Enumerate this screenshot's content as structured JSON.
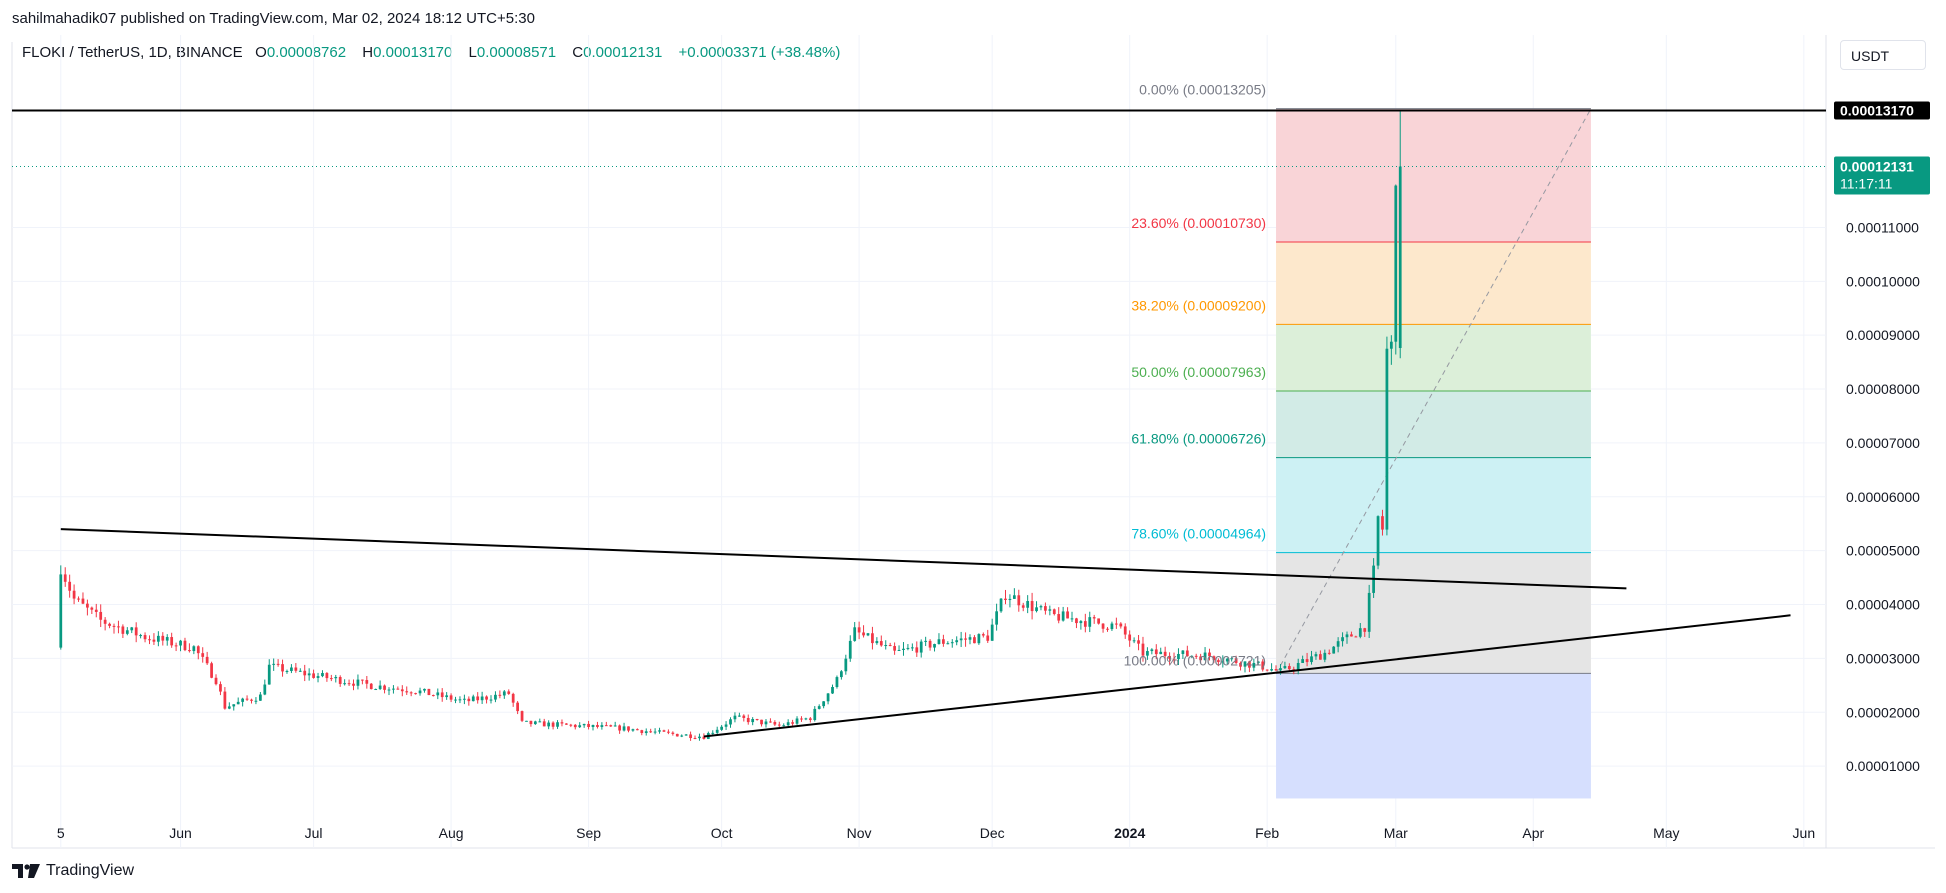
{
  "header": {
    "published": "sahilmahadik07 published on TradingView.com, Mar 02, 2024 18:12 UTC+5:30"
  },
  "legend": {
    "symbol": "FLOKI / TetherUS, 1D, BINANCE",
    "o_label": "O",
    "o_value": "0.00008762",
    "h_label": "H",
    "h_value": "0.00013170",
    "l_label": "L",
    "l_value": "0.00008571",
    "c_label": "C",
    "c_value": "0.00012131",
    "change": "+0.00003371 (+38.48%)"
  },
  "currency_button": "USDT",
  "brand": "TradingView",
  "colors": {
    "up": "#089981",
    "down": "#f23645",
    "text": "#131722",
    "grid": "#f0f3fa"
  },
  "chart_data": {
    "type": "candlestick",
    "yticks": [
      "0.00001000",
      "0.00002000",
      "0.00003000",
      "0.00004000",
      "0.00005000",
      "0.00006000",
      "0.00007000",
      "0.00008000",
      "0.00009000",
      "0.00010000",
      "0.00011000"
    ],
    "ytick_values": [
      1e-05,
      2e-05,
      3e-05,
      4e-05,
      5e-05,
      6e-05,
      7e-05,
      8e-05,
      9e-05,
      0.0001,
      0.00011
    ],
    "ylim": [
      0,
      0.000137
    ],
    "xticks": [
      {
        "label": "5",
        "date": "2023-05-05"
      },
      {
        "label": "Jun",
        "date": "2023-06-01"
      },
      {
        "label": "Jul",
        "date": "2023-07-01"
      },
      {
        "label": "Aug",
        "date": "2023-08-01"
      },
      {
        "label": "Sep",
        "date": "2023-09-01"
      },
      {
        "label": "Oct",
        "date": "2023-10-01"
      },
      {
        "label": "Nov",
        "date": "2023-11-01"
      },
      {
        "label": "Dec",
        "date": "2023-12-01"
      },
      {
        "label": "2024",
        "date": "2024-01-01",
        "bold": true
      },
      {
        "label": "Feb",
        "date": "2024-02-01"
      },
      {
        "label": "Mar",
        "date": "2024-03-01"
      },
      {
        "label": "Apr",
        "date": "2024-04-01"
      },
      {
        "label": "May",
        "date": "2024-05-01"
      },
      {
        "label": "Jun",
        "date": "2024-06-01"
      }
    ],
    "xlim": [
      "2023-04-24",
      "2024-06-06"
    ],
    "price_path": [
      {
        "date": "2023-05-05",
        "price": 3.2e-05
      },
      {
        "date": "2023-05-06",
        "price": 4.7e-05
      },
      {
        "date": "2023-05-09",
        "price": 4.1e-05
      },
      {
        "date": "2023-05-15",
        "price": 3.7e-05
      },
      {
        "date": "2023-05-25",
        "price": 3.4e-05
      },
      {
        "date": "2023-06-05",
        "price": 3.2e-05
      },
      {
        "date": "2023-06-10",
        "price": 2.6e-05
      },
      {
        "date": "2023-06-12",
        "price": 2.1e-05
      },
      {
        "date": "2023-06-20",
        "price": 2.3e-05
      },
      {
        "date": "2023-06-22",
        "price": 2.85e-05
      },
      {
        "date": "2023-07-01",
        "price": 2.7e-05
      },
      {
        "date": "2023-07-15",
        "price": 2.5e-05
      },
      {
        "date": "2023-07-25",
        "price": 2.4e-05
      },
      {
        "date": "2023-08-05",
        "price": 2.2e-05
      },
      {
        "date": "2023-08-15",
        "price": 2.35e-05
      },
      {
        "date": "2023-08-18",
        "price": 1.8e-05
      },
      {
        "date": "2023-08-30",
        "price": 1.75e-05
      },
      {
        "date": "2023-09-10",
        "price": 1.7e-05
      },
      {
        "date": "2023-09-20",
        "price": 1.6e-05
      },
      {
        "date": "2023-09-28",
        "price": 1.55e-05
      },
      {
        "date": "2023-10-05",
        "price": 1.9e-05
      },
      {
        "date": "2023-10-15",
        "price": 1.75e-05
      },
      {
        "date": "2023-10-22",
        "price": 1.9e-05
      },
      {
        "date": "2023-10-28",
        "price": 2.6e-05
      },
      {
        "date": "2023-11-01",
        "price": 3.5e-05
      },
      {
        "date": "2023-11-10",
        "price": 3.1e-05
      },
      {
        "date": "2023-11-20",
        "price": 3.3e-05
      },
      {
        "date": "2023-12-01",
        "price": 3.4e-05
      },
      {
        "date": "2023-12-05",
        "price": 4.2e-05
      },
      {
        "date": "2023-12-15",
        "price": 3.8e-05
      },
      {
        "date": "2023-12-30",
        "price": 3.6e-05
      },
      {
        "date": "2024-01-05",
        "price": 3.1e-05
      },
      {
        "date": "2024-01-20",
        "price": 3.05e-05
      },
      {
        "date": "2024-02-01",
        "price": 2.85e-05
      },
      {
        "date": "2024-02-05",
        "price": 2.75e-05
      },
      {
        "date": "2024-02-15",
        "price": 3.1e-05
      },
      {
        "date": "2024-02-24",
        "price": 3.6e-05
      },
      {
        "date": "2024-02-26",
        "price": 4.6e-05
      },
      {
        "date": "2024-02-27",
        "price": 5.6e-05
      },
      {
        "date": "2024-02-28",
        "price": 5.4e-05
      },
      {
        "date": "2024-02-29",
        "price": 8.7e-05
      },
      {
        "date": "2024-03-01",
        "price": 8.76e-05
      },
      {
        "date": "2024-03-02",
        "price": 0.00012131
      }
    ],
    "last_candle": {
      "date": "2024-03-02",
      "open": 8.762e-05,
      "high": 0.0001317,
      "low": 8.571e-05,
      "close": 0.00012131
    },
    "price_labels": [
      {
        "text": "0.00013170",
        "value": 0.0001317,
        "style": "high"
      },
      {
        "text": "0.00012131",
        "value": 0.00012131,
        "style": "last",
        "timer": "11:17:11"
      }
    ],
    "trendlines": [
      {
        "name": "upper-trendline",
        "from": {
          "date": "2023-05-05",
          "price": 5.4e-05
        },
        "to": {
          "date": "2024-04-22",
          "price": 4.3e-05
        }
      },
      {
        "name": "lower-trendline",
        "from": {
          "date": "2023-09-27",
          "price": 1.55e-05
        },
        "to": {
          "date": "2024-05-29",
          "price": 3.8e-05
        }
      }
    ],
    "fibonacci": {
      "start_date": "2024-02-03",
      "end_date": "2024-04-14",
      "extends_to": 4e-06,
      "levels": [
        {
          "label": "0.00% (0.00013205)",
          "value": 0.00013205,
          "color": "#787b86"
        },
        {
          "label": "23.60% (0.00010730)",
          "value": 0.0001073,
          "color": "#f23645"
        },
        {
          "label": "38.20% (0.00009200)",
          "value": 9.2e-05,
          "color": "#ff9800"
        },
        {
          "label": "50.00% (0.00007963)",
          "value": 7.963e-05,
          "color": "#4caf50"
        },
        {
          "label": "61.80% (0.00006726)",
          "value": 6.726e-05,
          "color": "#089981"
        },
        {
          "label": "78.60% (0.00004964)",
          "value": 4.964e-05,
          "color": "#00bcd4"
        },
        {
          "label": "100.00% (0.00002721)",
          "value": 2.721e-05,
          "color": "#787b86"
        }
      ],
      "zone_colors": [
        "#f9d4d7",
        "#fde8cc",
        "#dcefd9",
        "#d2ebe6",
        "#cdf1f4",
        "#e5e5e5",
        "#d6dffe"
      ]
    }
  }
}
